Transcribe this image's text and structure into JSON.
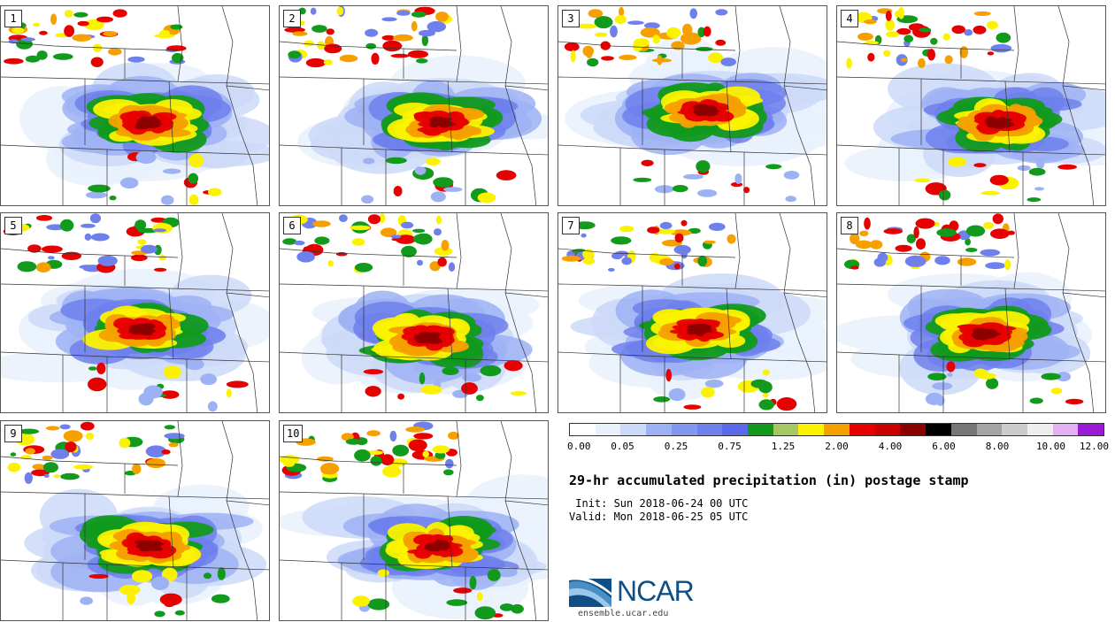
{
  "panels": [
    {
      "number": "1",
      "rain_cx": 0.55,
      "rain_cy": 0.58
    },
    {
      "number": "2",
      "rain_cx": 0.6,
      "rain_cy": 0.58
    },
    {
      "number": "3",
      "rain_cx": 0.55,
      "rain_cy": 0.52
    },
    {
      "number": "4",
      "rain_cx": 0.6,
      "rain_cy": 0.58
    },
    {
      "number": "5",
      "rain_cx": 0.52,
      "rain_cy": 0.58
    },
    {
      "number": "6",
      "rain_cx": 0.55,
      "rain_cy": 0.62
    },
    {
      "number": "7",
      "rain_cx": 0.52,
      "rain_cy": 0.58
    },
    {
      "number": "8",
      "rain_cx": 0.55,
      "rain_cy": 0.6
    },
    {
      "number": "9",
      "rain_cx": 0.55,
      "rain_cy": 0.62
    },
    {
      "number": "10",
      "rain_cx": 0.58,
      "rain_cy": 0.62
    }
  ],
  "colorbar": {
    "colors": [
      "#ffffff",
      "#e9f1fd",
      "#cdd9f8",
      "#9db2f4",
      "#8298f0",
      "#6f80ec",
      "#5a6aea",
      "#119a1c",
      "#a6c863",
      "#fbf200",
      "#f6a000",
      "#e60000",
      "#c80000",
      "#8e0000",
      "#000000",
      "#777777",
      "#a4a4a4",
      "#cccccc",
      "#eeeeee",
      "#e3b1f1",
      "#9a1ad8"
    ],
    "tick_labels": [
      "0.00",
      "0.05",
      "0.25",
      "0.75",
      "1.25",
      "2.00",
      "4.00",
      "6.00",
      "8.00",
      "10.00",
      "12.00"
    ]
  },
  "title": "29-hr accumulated precipitation (in) postage stamp",
  "init_text": " Init: Sun 2018-06-24 00 UTC",
  "valid_text": "Valid: Mon 2018-06-25 05 UTC",
  "logo": {
    "wordmark": "NCAR",
    "url": "ensemble.ucar.edu"
  }
}
